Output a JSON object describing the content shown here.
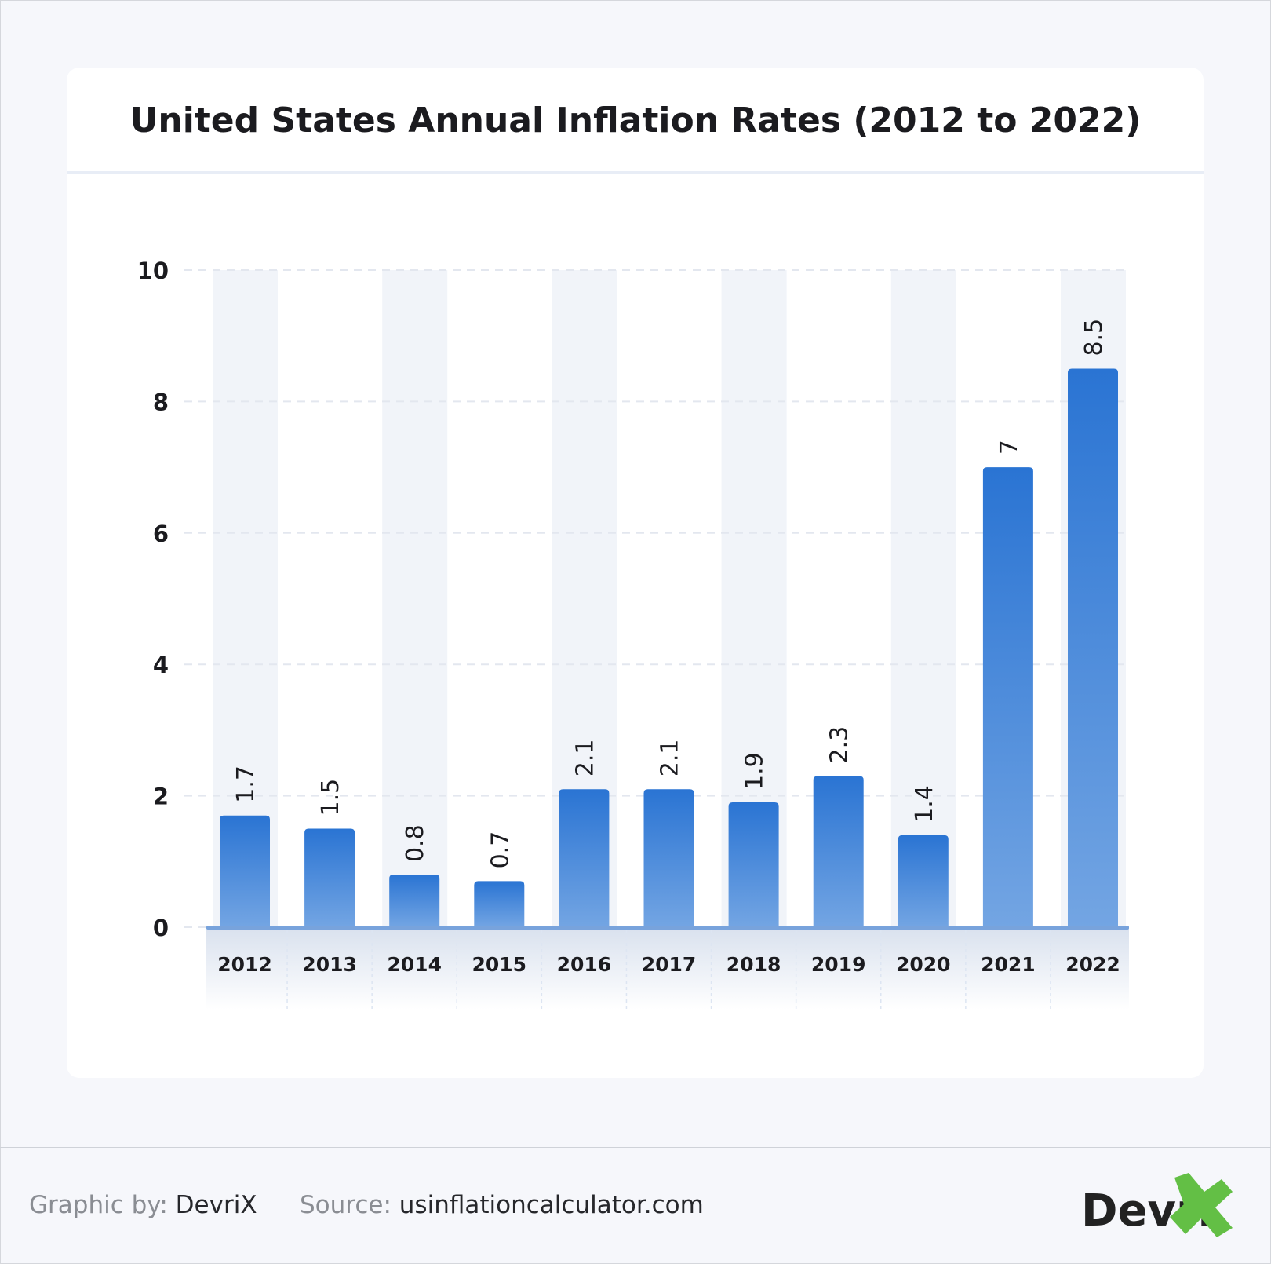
{
  "chart_data": {
    "type": "bar",
    "title": "United States Annual Inflation Rates (2012 to 2022)",
    "categories": [
      "2012",
      "2013",
      "2014",
      "2015",
      "2016",
      "2017",
      "2018",
      "2019",
      "2020",
      "2021",
      "2022"
    ],
    "values": [
      1.7,
      1.5,
      0.8,
      0.7,
      2.1,
      2.1,
      1.9,
      2.3,
      1.4,
      7,
      8.5
    ],
    "value_labels": [
      "1.7",
      "1.5",
      "0.8",
      "0.7",
      "2.1",
      "2.1",
      "1.9",
      "2.3",
      "1.4",
      "7",
      "8.5"
    ],
    "yticks": [
      0,
      2,
      4,
      6,
      8,
      10
    ],
    "ylim": [
      0,
      10
    ],
    "xlabel": "",
    "ylabel": "",
    "grid": true,
    "bar_color_top": "#2a74d3",
    "bar_color_bottom": "#73a5e3"
  },
  "footer": {
    "graphic_by_label": "Graphic by:",
    "graphic_by_value": "DevriX",
    "source_label": "Source:",
    "source_value": "usinflationcalculator.com",
    "logo_text": "DevriX"
  }
}
